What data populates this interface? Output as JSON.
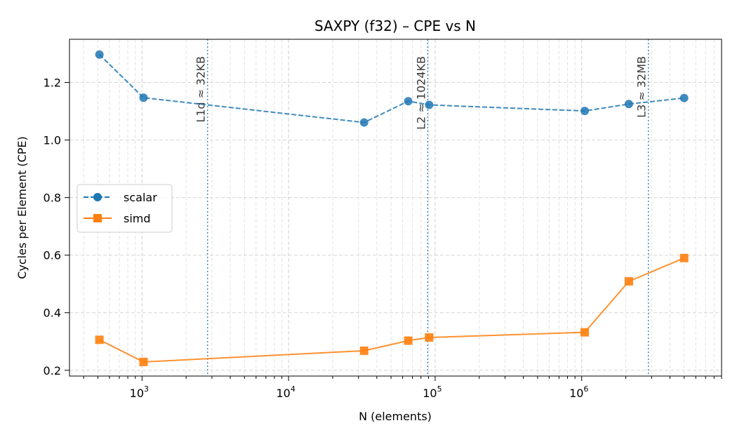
{
  "chart_data": {
    "type": "line",
    "title": "SAXPY (f32) – CPE vs N",
    "xlabel": "N (elements)",
    "ylabel": "Cycles per Element (CPE)",
    "xscale": "log",
    "xlim": [
      320,
      9000000
    ],
    "ylim": [
      0.18,
      1.35
    ],
    "grid": true,
    "legend_position": "center-left",
    "x_tick_labels": [
      {
        "value": 1000,
        "base": "10",
        "exp": "3"
      },
      {
        "value": 10000,
        "base": "10",
        "exp": "4"
      },
      {
        "value": 100000,
        "base": "10",
        "exp": "5"
      },
      {
        "value": 1000000,
        "base": "10",
        "exp": "6"
      }
    ],
    "y_ticks": [
      0.2,
      0.4,
      0.6,
      0.8,
      1.0,
      1.2
    ],
    "y_tick_labels": [
      "0.2",
      "0.4",
      "0.6",
      "0.8",
      "1.0",
      "1.2"
    ],
    "series": [
      {
        "name": "scalar",
        "color": "#1f77b4",
        "line_style": "dashed",
        "marker": "circle",
        "x": [
          512,
          1024,
          32768,
          65536,
          91000,
          1048576,
          2097152,
          5000000
        ],
        "y": [
          1.297,
          1.147,
          1.061,
          1.135,
          1.122,
          1.101,
          1.125,
          1.146
        ]
      },
      {
        "name": "simd",
        "color": "#ff7f0e",
        "line_style": "solid",
        "marker": "square",
        "x": [
          512,
          1024,
          32768,
          65536,
          91000,
          1048576,
          2097152,
          5000000
        ],
        "y": [
          0.306,
          0.229,
          0.268,
          0.303,
          0.314,
          0.332,
          0.509,
          0.59
        ]
      }
    ],
    "vlines": [
      {
        "x": 2800,
        "label": "L1d ≈ 32KB",
        "color": "#1f77b4"
      },
      {
        "x": 89000,
        "label": "L2 ≈ 1024KB",
        "color": "#1f77b4"
      },
      {
        "x": 2850000,
        "label": "L3 ≈ 32MB",
        "color": "#1f77b4"
      }
    ]
  }
}
